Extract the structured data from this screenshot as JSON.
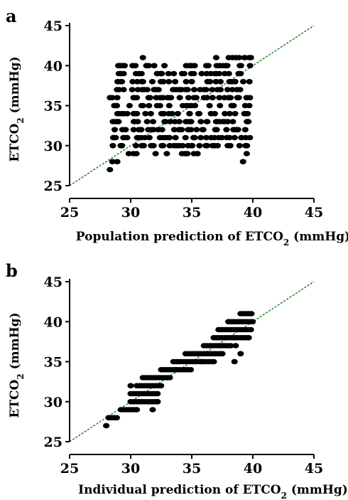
{
  "panels": {
    "a": {
      "letter": "a"
    },
    "b": {
      "letter": "b"
    }
  },
  "colors": {
    "points": "#000000",
    "identity_line": "#2e8b2e",
    "axes": "#000000"
  },
  "chart_data": [
    {
      "type": "scatter",
      "panel": "a",
      "xlabel": {
        "main": "Population prediction of ETCO",
        "sub": "2",
        "unit": " (mmHg)"
      },
      "ylabel": {
        "main": "ETCO",
        "sub": "2",
        "unit": " (mmHg)"
      },
      "xlim": [
        25,
        45
      ],
      "ylim": [
        25,
        45
      ],
      "xticks": [
        25,
        30,
        35,
        40,
        45
      ],
      "yticks": [
        25,
        30,
        35,
        40,
        45
      ],
      "reference_line": {
        "style": "dotted",
        "from": [
          25,
          25
        ],
        "to": [
          45,
          45
        ]
      },
      "clusters": [
        {
          "x_range": [
            28.3,
            29.7
          ],
          "y_range": [
            30,
            40
          ]
        },
        {
          "x_range": [
            29.7,
            31.4
          ],
          "y_range": [
            29,
            40
          ]
        },
        {
          "x_range": [
            31.4,
            33.0
          ],
          "y_range": [
            29,
            40
          ]
        },
        {
          "x_range": [
            33.0,
            34.5
          ],
          "y_range": [
            29,
            39
          ]
        },
        {
          "x_range": [
            34.5,
            36.0
          ],
          "y_range": [
            29,
            40
          ]
        },
        {
          "x_range": [
            36.0,
            37.4
          ],
          "y_range": [
            30,
            40
          ]
        },
        {
          "x_range": [
            37.4,
            38.7
          ],
          "y_range": [
            30,
            41
          ]
        },
        {
          "x_range": [
            38.7,
            39.9
          ],
          "y_range": [
            30,
            41
          ]
        }
      ],
      "extra_points": [
        [
          28.3,
          27
        ],
        [
          28.5,
          28
        ],
        [
          28.9,
          28
        ],
        [
          31.0,
          41
        ],
        [
          37.0,
          41
        ],
        [
          38.6,
          41
        ],
        [
          39.3,
          41
        ],
        [
          39.2,
          28
        ],
        [
          39.5,
          29
        ],
        [
          34.7,
          30
        ],
        [
          36.7,
          30
        ]
      ]
    },
    {
      "type": "scatter",
      "panel": "b",
      "xlabel": {
        "main": "Individual prediction of ETCO",
        "sub": "2",
        "unit": " (mmHg)"
      },
      "ylabel": {
        "main": "ETCO",
        "sub": "2",
        "unit": " (mmHg)"
      },
      "xlim": [
        25,
        45
      ],
      "ylim": [
        25,
        45
      ],
      "xticks": [
        25,
        30,
        35,
        40,
        45
      ],
      "yticks": [
        25,
        30,
        35,
        40,
        45
      ],
      "reference_line": {
        "style": "dotted",
        "from": [
          25,
          25
        ],
        "to": [
          45,
          45
        ]
      },
      "rows": [
        {
          "y": 27,
          "x_range": [
            28.0,
            28.2
          ]
        },
        {
          "y": 28,
          "x_range": [
            28.2,
            29.0
          ]
        },
        {
          "y": 29,
          "x_range": [
            29.2,
            30.3
          ]
        },
        {
          "y": 30,
          "x_range": [
            30.0,
            32.3
          ]
        },
        {
          "y": 31,
          "x_range": [
            30.0,
            32.3
          ]
        },
        {
          "y": 32,
          "x_range": [
            30.5,
            32.5
          ]
        },
        {
          "y": 33,
          "x_range": [
            31.0,
            33.3
          ]
        },
        {
          "y": 34,
          "x_range": [
            32.5,
            35.0
          ]
        },
        {
          "y": 35,
          "x_range": [
            33.5,
            36.8
          ]
        },
        {
          "y": 36,
          "x_range": [
            34.5,
            37.5
          ]
        },
        {
          "y": 37,
          "x_range": [
            36.0,
            38.2
          ]
        },
        {
          "y": 38,
          "x_range": [
            36.8,
            39.8
          ]
        },
        {
          "y": 39,
          "x_range": [
            37.2,
            40.0
          ]
        },
        {
          "y": 40,
          "x_range": [
            38.0,
            40.0
          ]
        },
        {
          "y": 41,
          "x_range": [
            39.0,
            39.9
          ]
        }
      ],
      "extra_points": [
        [
          30.5,
          29
        ],
        [
          31.8,
          29
        ],
        [
          30.0,
          32
        ],
        [
          33.7,
          34
        ],
        [
          38.5,
          35
        ],
        [
          39.0,
          36
        ],
        [
          38.6,
          37
        ],
        [
          32.2,
          30
        ],
        [
          35.8,
          35
        ],
        [
          37.5,
          36
        ]
      ]
    }
  ]
}
